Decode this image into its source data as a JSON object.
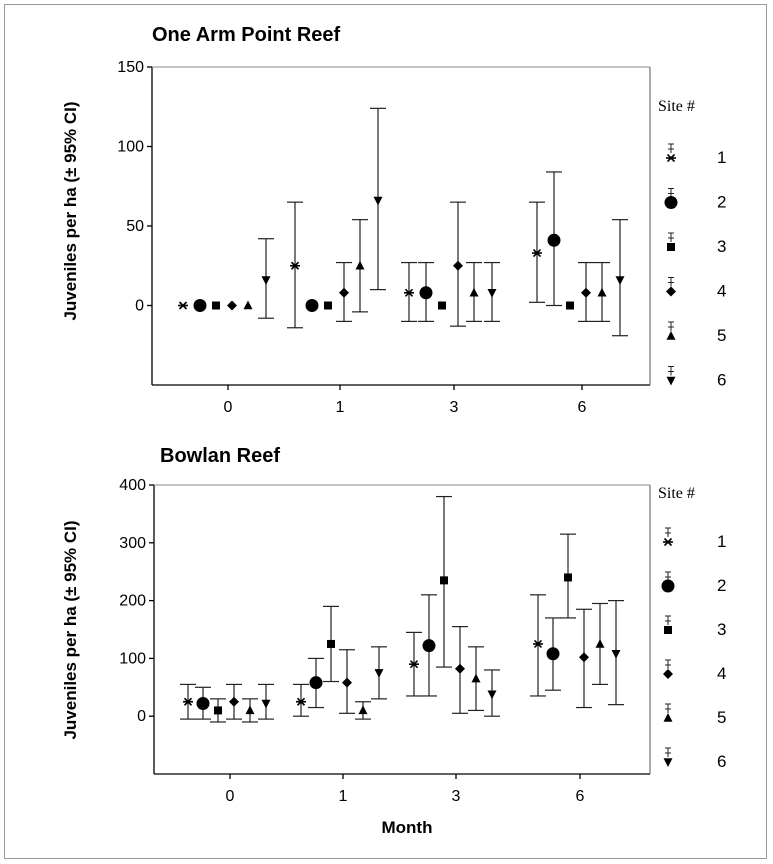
{
  "chart_data": [
    {
      "type": "scatter",
      "title": "One Arm Point Reef",
      "ylabel": "Juveniles per ha (± 95% CI)",
      "xlabel": "",
      "ylim": [
        -50,
        150
      ],
      "yticks": [
        0,
        50,
        100,
        150
      ],
      "categories": [
        "0",
        "1",
        "3",
        "6"
      ],
      "legend": {
        "title": "Site #",
        "position": "right",
        "labels": [
          "1",
          "2",
          "3",
          "4",
          "5",
          "6"
        ]
      },
      "series": [
        {
          "name": "1",
          "marker": "asterisk",
          "values": [
            0,
            25,
            8,
            33
          ],
          "ci_low": [
            0,
            -14,
            -10,
            2
          ],
          "ci_high": [
            0,
            65,
            27,
            65
          ]
        },
        {
          "name": "2",
          "marker": "circle",
          "values": [
            0,
            0,
            8,
            41
          ],
          "ci_low": [
            0,
            0,
            -10,
            0
          ],
          "ci_high": [
            0,
            0,
            27,
            84
          ]
        },
        {
          "name": "3",
          "marker": "square",
          "values": [
            0,
            0,
            0,
            0
          ],
          "ci_low": [
            0,
            0,
            0,
            0
          ],
          "ci_high": [
            0,
            0,
            0,
            0
          ]
        },
        {
          "name": "4",
          "marker": "diamond",
          "values": [
            0,
            8,
            25,
            8
          ],
          "ci_low": [
            0,
            -10,
            -13,
            -10
          ],
          "ci_high": [
            0,
            27,
            65,
            27
          ]
        },
        {
          "name": "5",
          "marker": "triangle-up",
          "values": [
            0,
            25,
            8,
            8
          ],
          "ci_low": [
            0,
            -4,
            -10,
            -10
          ],
          "ci_high": [
            0,
            54,
            27,
            27
          ]
        },
        {
          "name": "6",
          "marker": "triangle-down",
          "values": [
            16,
            66,
            8,
            16
          ],
          "ci_low": [
            -8,
            10,
            -10,
            -19
          ],
          "ci_high": [
            42,
            124,
            27,
            54
          ]
        }
      ]
    },
    {
      "type": "scatter",
      "title": "Bowlan Reef",
      "ylabel": "Juveniles per ha (± 95% CI)",
      "xlabel": "Month",
      "ylim": [
        -100,
        400
      ],
      "yticks": [
        0,
        100,
        200,
        300,
        400
      ],
      "categories": [
        "0",
        "1",
        "3",
        "6"
      ],
      "legend": {
        "title": "Site #",
        "position": "right",
        "labels": [
          "1",
          "2",
          "3",
          "4",
          "5",
          "6"
        ]
      },
      "series": [
        {
          "name": "1",
          "marker": "asterisk",
          "values": [
            25,
            25,
            90,
            125
          ],
          "ci_low": [
            -5,
            0,
            35,
            35
          ],
          "ci_high": [
            55,
            55,
            145,
            210
          ]
        },
        {
          "name": "2",
          "marker": "circle",
          "values": [
            22,
            58,
            122,
            108
          ],
          "ci_low": [
            -5,
            15,
            35,
            45
          ],
          "ci_high": [
            50,
            100,
            210,
            170
          ]
        },
        {
          "name": "3",
          "marker": "square",
          "values": [
            10,
            125,
            235,
            240
          ],
          "ci_low": [
            -10,
            60,
            85,
            170
          ],
          "ci_high": [
            30,
            190,
            380,
            315
          ]
        },
        {
          "name": "4",
          "marker": "diamond",
          "values": [
            25,
            58,
            82,
            102
          ],
          "ci_low": [
            -5,
            5,
            5,
            15
          ],
          "ci_high": [
            55,
            115,
            155,
            185
          ]
        },
        {
          "name": "5",
          "marker": "triangle-up",
          "values": [
            10,
            10,
            65,
            125
          ],
          "ci_low": [
            -10,
            -5,
            10,
            55
          ],
          "ci_high": [
            30,
            25,
            120,
            195
          ]
        },
        {
          "name": "6",
          "marker": "triangle-down",
          "values": [
            22,
            75,
            38,
            108
          ],
          "ci_low": [
            -5,
            30,
            0,
            20
          ],
          "ci_high": [
            55,
            120,
            80,
            200
          ]
        }
      ]
    }
  ]
}
